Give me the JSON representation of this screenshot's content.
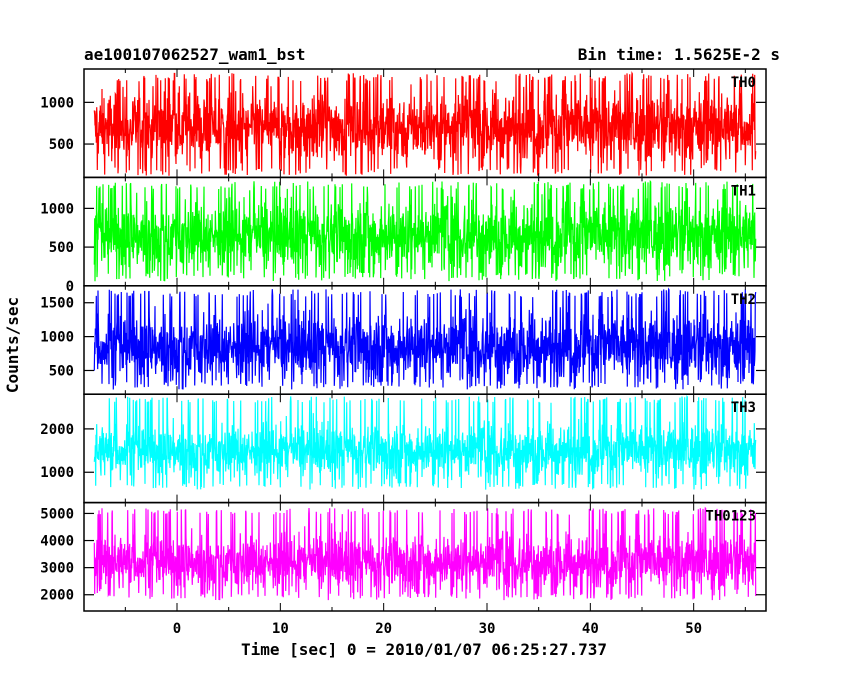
{
  "chart_data": {
    "type": "line",
    "title": "ae100107062527_wam1_bst",
    "subtitle": "Bin time: 1.5625E-2 s",
    "xlabel": "Time [sec] 0 = 2010/01/07 06:25:27.737",
    "ylabel": "Counts/sec",
    "xlim": [
      -9,
      57
    ],
    "x_ticks": [
      0,
      10,
      20,
      30,
      40,
      50
    ],
    "data_range": [
      -8,
      56
    ],
    "grid": false,
    "panels": [
      {
        "name": "TH0",
        "color": "#ff0000",
        "ylim": [
          100,
          1400
        ],
        "y_ticks": [
          500,
          1000
        ],
        "baseline": 700,
        "low": 120,
        "high": 1350,
        "spread": 200
      },
      {
        "name": "TH1",
        "color": "#00ff00",
        "ylim": [
          0,
          1400
        ],
        "y_ticks": [
          0,
          500,
          1000
        ],
        "baseline": 650,
        "low": 60,
        "high": 1350,
        "spread": 220
      },
      {
        "name": "TH2",
        "color": "#0000ff",
        "ylim": [
          150,
          1750
        ],
        "y_ticks": [
          500,
          1000,
          1500
        ],
        "baseline": 850,
        "low": 220,
        "high": 1700,
        "spread": 240
      },
      {
        "name": "TH3",
        "color": "#00ffff",
        "ylim": [
          300,
          2800
        ],
        "y_ticks": [
          1000,
          2000
        ],
        "baseline": 1500,
        "low": 600,
        "high": 2750,
        "spread": 300
      },
      {
        "name": "TH0123",
        "color": "#ff00ff",
        "ylim": [
          1400,
          5400
        ],
        "y_ticks": [
          2000,
          3000,
          4000,
          5000
        ],
        "baseline": 3200,
        "low": 1800,
        "high": 5200,
        "spread": 500
      }
    ]
  }
}
